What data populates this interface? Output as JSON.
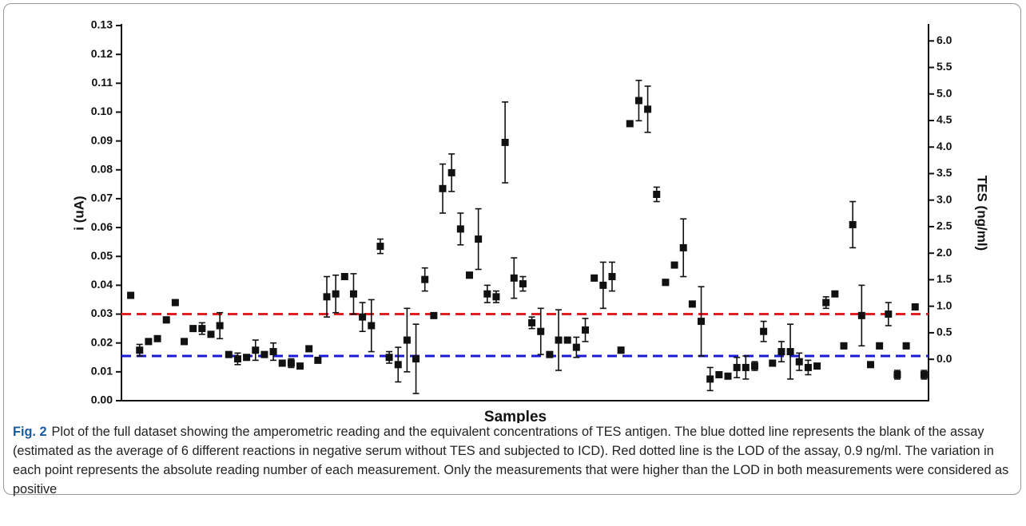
{
  "chart_data": {
    "type": "errorscatter",
    "xlabel": "Samples",
    "ylabel": "i (uA)",
    "y2label": "TES (ng/ml)",
    "categories": [
      null,
      null,
      null,
      null,
      null,
      null,
      null,
      null,
      null,
      null,
      null,
      null,
      null,
      null,
      null,
      null,
      null,
      null,
      null,
      null,
      null,
      null,
      null,
      null,
      null,
      null,
      null,
      null,
      null,
      null,
      null,
      null,
      null,
      null,
      null,
      null,
      null,
      null,
      null,
      null,
      null,
      null,
      null,
      null,
      null,
      null,
      null,
      null,
      null,
      null,
      null,
      null,
      null,
      null,
      null,
      null,
      null,
      null,
      null,
      null,
      null,
      null,
      null,
      null,
      null,
      null,
      null,
      null,
      null,
      null,
      null,
      null,
      null,
      null,
      null,
      null,
      null,
      null,
      null,
      null,
      null,
      null,
      null,
      null,
      null,
      null,
      null,
      null,
      null,
      null
    ],
    "series": [
      {
        "color": "#111111",
        "values": [
          0.0365,
          0.0175,
          0.0205,
          0.0215,
          0.028,
          0.034,
          0.0205,
          0.025,
          0.025,
          0.023,
          0.026,
          0.016,
          0.0145,
          0.015,
          0.0175,
          0.016,
          0.017,
          0.013,
          0.013,
          0.012,
          0.018,
          0.014,
          0.036,
          0.037,
          0.043,
          0.037,
          0.029,
          0.026,
          0.0535,
          0.015,
          0.0125,
          0.021,
          0.0145,
          0.042,
          0.0295,
          0.0735,
          0.079,
          0.0595,
          0.0435,
          0.056,
          0.037,
          0.036,
          0.0895,
          0.0425,
          0.0405,
          0.027,
          0.024,
          0.016,
          0.021,
          0.021,
          0.0185,
          0.0245,
          0.0425,
          0.04,
          0.043,
          0.0175,
          0.096,
          0.104,
          0.101,
          0.0715,
          0.041,
          0.047,
          0.053,
          0.0335,
          0.0275,
          0.0075,
          0.009,
          0.0085,
          0.0115,
          0.0115,
          0.012,
          0.024,
          0.013,
          0.017,
          0.017,
          0.0135,
          0.0115,
          0.012,
          0.034,
          0.037,
          0.019,
          0.061,
          0.0295,
          0.0125,
          0.019,
          0.03,
          0.009,
          0.019,
          0.0325,
          0.009
        ],
        "errors": [
          null,
          0.002,
          null,
          null,
          0.001,
          null,
          0.001,
          null,
          0.002,
          null,
          0.0045,
          null,
          0.002,
          null,
          0.0035,
          null,
          0.003,
          null,
          0.0015,
          null,
          null,
          null,
          0.007,
          0.0065,
          0.001,
          0.007,
          0.005,
          0.009,
          0.0025,
          0.002,
          0.006,
          0.011,
          0.012,
          0.004,
          null,
          0.0085,
          0.0065,
          0.0055,
          0.001,
          0.0105,
          0.003,
          0.002,
          0.014,
          0.007,
          0.0025,
          0.002,
          0.008,
          null,
          0.0105,
          null,
          0.0035,
          0.004,
          0.001,
          0.008,
          0.005,
          0.001,
          null,
          0.007,
          0.008,
          0.0025,
          0.001,
          null,
          0.01,
          0.001,
          0.012,
          0.004,
          null,
          null,
          0.0035,
          0.004,
          0.0015,
          0.0035,
          null,
          0.0035,
          0.0095,
          0.003,
          0.0025,
          null,
          0.002,
          null,
          0.001,
          0.008,
          0.0105,
          null,
          0.001,
          0.004,
          0.0015,
          0.001,
          null,
          0.0015
        ]
      }
    ],
    "reference_lines": [
      {
        "value": 0.03,
        "color": "#e02020"
      },
      {
        "value": 0.0155,
        "color": "#1a1ad6"
      }
    ],
    "ylim": [
      0,
      0.13
    ],
    "yticks": [
      {
        "value": 0,
        "label": "0.00"
      },
      {
        "value": 0.01,
        "label": "0.01"
      },
      {
        "value": 0.02,
        "label": "0.02"
      },
      {
        "value": 0.03,
        "label": "0.03"
      },
      {
        "value": 0.04,
        "label": "0.04"
      },
      {
        "value": 0.05,
        "label": "0.05"
      },
      {
        "value": 0.06,
        "label": "0.06"
      },
      {
        "value": 0.07,
        "label": "0.07"
      },
      {
        "value": 0.08,
        "label": "0.08"
      },
      {
        "value": 0.09,
        "label": "0.09"
      },
      {
        "value": 0.1,
        "label": "0.10"
      },
      {
        "value": 0.11,
        "label": "0.11"
      },
      {
        "value": 0.12,
        "label": "0.12"
      },
      {
        "value": 0.13,
        "label": "0.13"
      }
    ],
    "y2lim": [
      -0.78,
      6.29
    ],
    "y2ticks": [
      {
        "value": 0,
        "label": "0.0"
      },
      {
        "value": 0.5,
        "label": "0.5"
      },
      {
        "value": 1,
        "label": "1.0"
      },
      {
        "value": 1.5,
        "label": "1.5"
      },
      {
        "value": 2,
        "label": "2.0"
      },
      {
        "value": 2.5,
        "label": "2.5"
      },
      {
        "value": 3,
        "label": "3.0"
      },
      {
        "value": 3.5,
        "label": "3.5"
      },
      {
        "value": 4,
        "label": "4.0"
      },
      {
        "value": 4.5,
        "label": "4.5"
      },
      {
        "value": 5,
        "label": "5.0"
      },
      {
        "value": 5.5,
        "label": "5.5"
      },
      {
        "value": 6,
        "label": "6.0"
      }
    ]
  },
  "caption": {
    "label": "Fig. 2",
    "text": "Plot of the full dataset showing the amperometric reading and the equivalent concentrations of TES antigen. The blue dotted line represents the blank of the assay (estimated as the average of 6 different reactions in negative serum without TES and subjected to ICD). Red dotted line is the LOD of the assay, 0.9 ng/ml. The variation in each point represents the absolute reading number of each measurement. Only the measurements that were higher than the LOD in both measurements were considered as positive"
  }
}
